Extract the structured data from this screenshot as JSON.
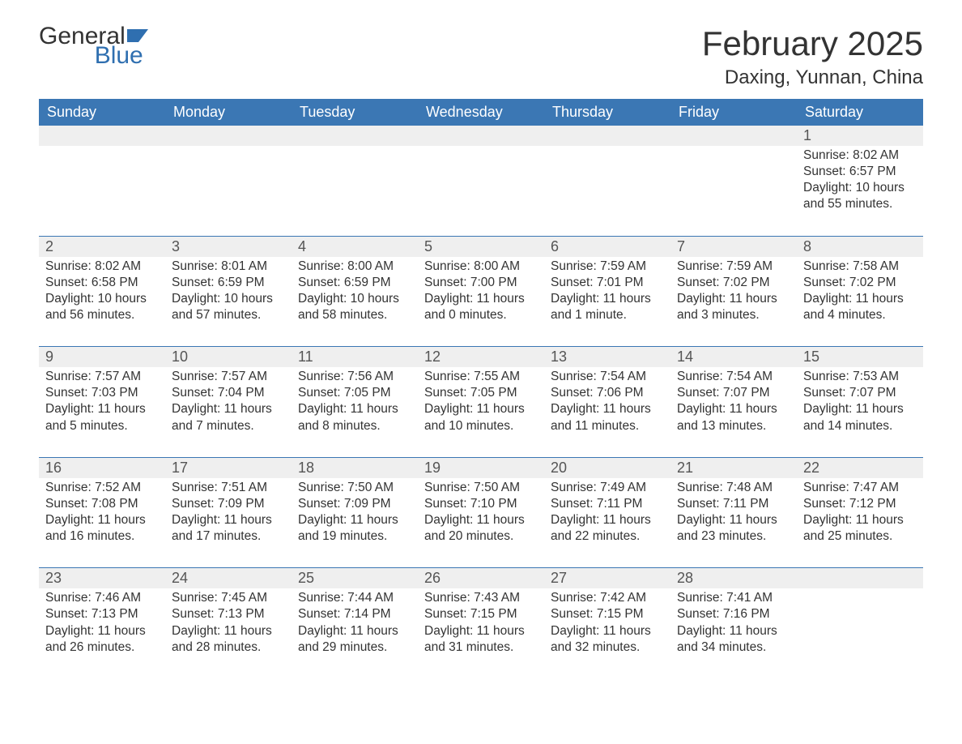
{
  "logo": {
    "line1": "General",
    "line2": "Blue",
    "iconColor": "#2f6fb0"
  },
  "title": {
    "month": "February 2025",
    "location": "Daxing, Yunnan, China"
  },
  "colors": {
    "headerBg": "#3b77b4",
    "headerText": "#ffffff",
    "stripBg": "#efefef",
    "borderTop": "#3b77b4",
    "bodyText": "#333333"
  },
  "weekdays": [
    "Sunday",
    "Monday",
    "Tuesday",
    "Wednesday",
    "Thursday",
    "Friday",
    "Saturday"
  ],
  "weeks": [
    [
      null,
      null,
      null,
      null,
      null,
      null,
      {
        "n": "1",
        "sr": "8:02 AM",
        "ss": "6:57 PM",
        "dl": "10 hours and 55 minutes."
      }
    ],
    [
      {
        "n": "2",
        "sr": "8:02 AM",
        "ss": "6:58 PM",
        "dl": "10 hours and 56 minutes."
      },
      {
        "n": "3",
        "sr": "8:01 AM",
        "ss": "6:59 PM",
        "dl": "10 hours and 57 minutes."
      },
      {
        "n": "4",
        "sr": "8:00 AM",
        "ss": "6:59 PM",
        "dl": "10 hours and 58 minutes."
      },
      {
        "n": "5",
        "sr": "8:00 AM",
        "ss": "7:00 PM",
        "dl": "11 hours and 0 minutes."
      },
      {
        "n": "6",
        "sr": "7:59 AM",
        "ss": "7:01 PM",
        "dl": "11 hours and 1 minute."
      },
      {
        "n": "7",
        "sr": "7:59 AM",
        "ss": "7:02 PM",
        "dl": "11 hours and 3 minutes."
      },
      {
        "n": "8",
        "sr": "7:58 AM",
        "ss": "7:02 PM",
        "dl": "11 hours and 4 minutes."
      }
    ],
    [
      {
        "n": "9",
        "sr": "7:57 AM",
        "ss": "7:03 PM",
        "dl": "11 hours and 5 minutes."
      },
      {
        "n": "10",
        "sr": "7:57 AM",
        "ss": "7:04 PM",
        "dl": "11 hours and 7 minutes."
      },
      {
        "n": "11",
        "sr": "7:56 AM",
        "ss": "7:05 PM",
        "dl": "11 hours and 8 minutes."
      },
      {
        "n": "12",
        "sr": "7:55 AM",
        "ss": "7:05 PM",
        "dl": "11 hours and 10 minutes."
      },
      {
        "n": "13",
        "sr": "7:54 AM",
        "ss": "7:06 PM",
        "dl": "11 hours and 11 minutes."
      },
      {
        "n": "14",
        "sr": "7:54 AM",
        "ss": "7:07 PM",
        "dl": "11 hours and 13 minutes."
      },
      {
        "n": "15",
        "sr": "7:53 AM",
        "ss": "7:07 PM",
        "dl": "11 hours and 14 minutes."
      }
    ],
    [
      {
        "n": "16",
        "sr": "7:52 AM",
        "ss": "7:08 PM",
        "dl": "11 hours and 16 minutes."
      },
      {
        "n": "17",
        "sr": "7:51 AM",
        "ss": "7:09 PM",
        "dl": "11 hours and 17 minutes."
      },
      {
        "n": "18",
        "sr": "7:50 AM",
        "ss": "7:09 PM",
        "dl": "11 hours and 19 minutes."
      },
      {
        "n": "19",
        "sr": "7:50 AM",
        "ss": "7:10 PM",
        "dl": "11 hours and 20 minutes."
      },
      {
        "n": "20",
        "sr": "7:49 AM",
        "ss": "7:11 PM",
        "dl": "11 hours and 22 minutes."
      },
      {
        "n": "21",
        "sr": "7:48 AM",
        "ss": "7:11 PM",
        "dl": "11 hours and 23 minutes."
      },
      {
        "n": "22",
        "sr": "7:47 AM",
        "ss": "7:12 PM",
        "dl": "11 hours and 25 minutes."
      }
    ],
    [
      {
        "n": "23",
        "sr": "7:46 AM",
        "ss": "7:13 PM",
        "dl": "11 hours and 26 minutes."
      },
      {
        "n": "24",
        "sr": "7:45 AM",
        "ss": "7:13 PM",
        "dl": "11 hours and 28 minutes."
      },
      {
        "n": "25",
        "sr": "7:44 AM",
        "ss": "7:14 PM",
        "dl": "11 hours and 29 minutes."
      },
      {
        "n": "26",
        "sr": "7:43 AM",
        "ss": "7:15 PM",
        "dl": "11 hours and 31 minutes."
      },
      {
        "n": "27",
        "sr": "7:42 AM",
        "ss": "7:15 PM",
        "dl": "11 hours and 32 minutes."
      },
      {
        "n": "28",
        "sr": "7:41 AM",
        "ss": "7:16 PM",
        "dl": "11 hours and 34 minutes."
      },
      null
    ]
  ],
  "labels": {
    "sunrise": "Sunrise: ",
    "sunset": "Sunset: ",
    "daylight": "Daylight: "
  }
}
